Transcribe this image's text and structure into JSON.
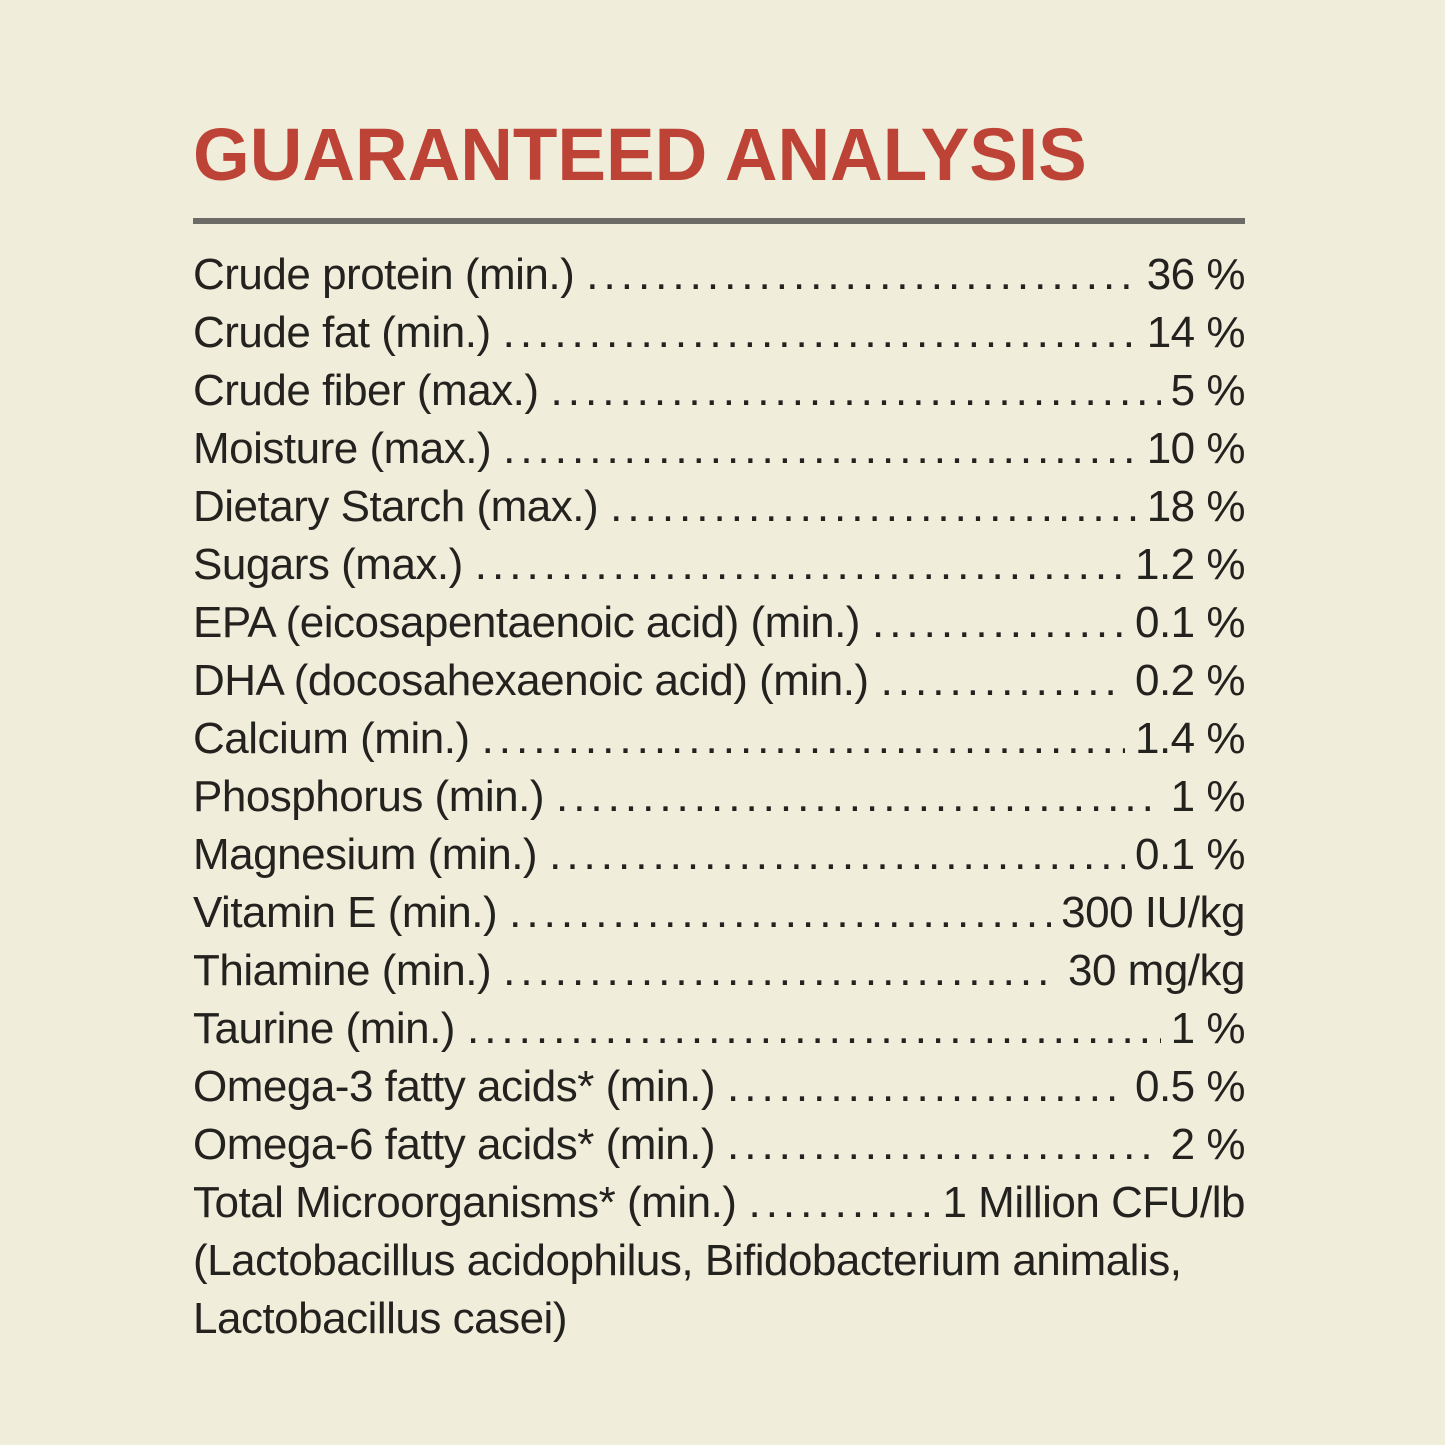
{
  "theme": {
    "background": "#F0EDDB",
    "text": "#23221E",
    "accent_red": "#BE4337",
    "rule_gray": "#6C6B66"
  },
  "header": {
    "title": "GUARANTEED ANALYSIS"
  },
  "analysis": {
    "rows": [
      {
        "label": "Crude protein (min.)",
        "value": "36 %"
      },
      {
        "label": "Crude fat (min.)",
        "value": "14 %"
      },
      {
        "label": "Crude fiber (max.)",
        "value": "5 %"
      },
      {
        "label": "Moisture (max.)",
        "value": "10 %"
      },
      {
        "label": "Dietary Starch (max.)",
        "value": "18 %"
      },
      {
        "label": "Sugars (max.)",
        "value": "1.2 %"
      },
      {
        "label": "EPA (eicosapentaenoic acid) (min.)",
        "value": "0.1 %"
      },
      {
        "label": "DHA (docosahexaenoic acid) (min.)",
        "value": "0.2 %"
      },
      {
        "label": "Calcium (min.)",
        "value": "1.4 %"
      },
      {
        "label": "Phosphorus (min.)",
        "value": "1 %"
      },
      {
        "label": "Magnesium (min.)",
        "value": "0.1 %"
      },
      {
        "label": "Vitamin E (min.)",
        "value": "300 IU/kg"
      },
      {
        "label": "Thiamine (min.)",
        "value": "30 mg/kg"
      },
      {
        "label": "Taurine (min.)",
        "value": "1 %"
      },
      {
        "label": "Omega-3 fatty acids* (min.)",
        "value": "0.5 %"
      },
      {
        "label": "Omega-6 fatty acids* (min.)",
        "value": "2 %"
      },
      {
        "label": "Total Microorganisms* (min.)",
        "value": "1 Million CFU/lb"
      }
    ],
    "footnote_lines": [
      "(Lactobacillus acidophilus, Bifidobacterium animalis,",
      "Lactobacillus casei)"
    ]
  }
}
